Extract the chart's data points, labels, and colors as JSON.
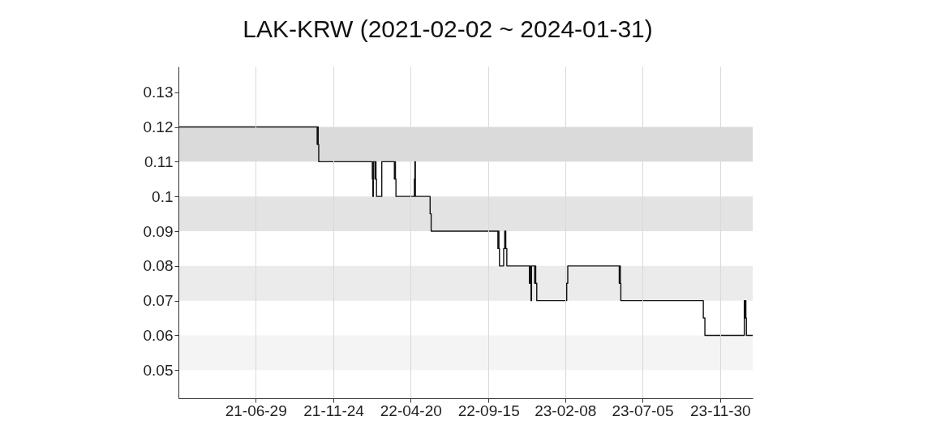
{
  "chart_data": {
    "type": "step",
    "title": "LAK-KRW (2021-02-02 ~ 2024-01-31)",
    "x": [
      "2021-02-02",
      "2021-10-24",
      "2021-10-25",
      "2021-10-26",
      "2021-10-27",
      "2022-02-06",
      "2022-02-07",
      "2022-02-08",
      "2022-02-11",
      "2022-02-12",
      "2022-02-13",
      "2022-02-14",
      "2022-02-24",
      "2022-03-20",
      "2022-03-21",
      "2022-03-22",
      "2022-03-23",
      "2022-04-27",
      "2022-04-28",
      "2022-04-29",
      "2022-05-27",
      "2022-05-29",
      "2022-10-03",
      "2022-10-04",
      "2022-10-05",
      "2022-10-06",
      "2022-10-14",
      "2022-10-16",
      "2022-10-18",
      "2022-10-20",
      "2022-12-02",
      "2022-12-03",
      "2022-12-04",
      "2022-12-05",
      "2022-12-06",
      "2022-12-12",
      "2022-12-13",
      "2022-12-14",
      "2022-12-16",
      "2023-02-11",
      "2023-02-13",
      "2023-05-22",
      "2023-05-23",
      "2023-05-24",
      "2023-05-25",
      "2023-10-29",
      "2023-11-01",
      "2024-01-15",
      "2024-01-16",
      "2024-01-17",
      "2024-01-18",
      "2024-01-19",
      "2024-01-31"
    ],
    "values": [
      0.12,
      0.115,
      0.12,
      0.115,
      0.11,
      0.105,
      0.1,
      0.11,
      0.105,
      0.11,
      0.105,
      0.1,
      0.11,
      0.105,
      0.11,
      0.105,
      0.1,
      0.105,
      0.11,
      0.1,
      0.095,
      0.09,
      0.085,
      0.09,
      0.085,
      0.08,
      0.085,
      0.09,
      0.085,
      0.08,
      0.075,
      0.08,
      0.075,
      0.07,
      0.08,
      0.075,
      0.08,
      0.075,
      0.07,
      0.075,
      0.08,
      0.075,
      0.08,
      0.075,
      0.07,
      0.065,
      0.06,
      0.07,
      0.065,
      0.07,
      0.065,
      0.06,
      0.06
    ],
    "color": "#111111",
    "line_style": "solid",
    "xlim": [
      "2021-02-02",
      "2024-01-31"
    ],
    "xticks": [
      {
        "value": "2021-06-29",
        "label": "21-06-29"
      },
      {
        "value": "2021-11-24",
        "label": "21-11-24"
      },
      {
        "value": "2022-04-20",
        "label": "22-04-20"
      },
      {
        "value": "2022-09-15",
        "label": "22-09-15"
      },
      {
        "value": "2023-02-08",
        "label": "23-02-08"
      },
      {
        "value": "2023-07-05",
        "label": "23-07-05"
      },
      {
        "value": "2023-11-30",
        "label": "23-11-30"
      }
    ],
    "ylim": [
      0.0419,
      0.1374
    ],
    "yticks": [
      0.05,
      0.06,
      0.07,
      0.08,
      0.09,
      0.1,
      0.11,
      0.12,
      0.13
    ],
    "grid": "x",
    "bands": [
      {
        "axis": "y",
        "from": 0.11,
        "to": 0.12,
        "color": "#dadada"
      },
      {
        "axis": "y",
        "from": 0.09,
        "to": 0.1,
        "color": "#e3e3e3"
      },
      {
        "axis": "y",
        "from": 0.07,
        "to": 0.08,
        "color": "#ebebeb"
      },
      {
        "axis": "y",
        "from": 0.05,
        "to": 0.06,
        "color": "#f4f4f4"
      }
    ]
  }
}
